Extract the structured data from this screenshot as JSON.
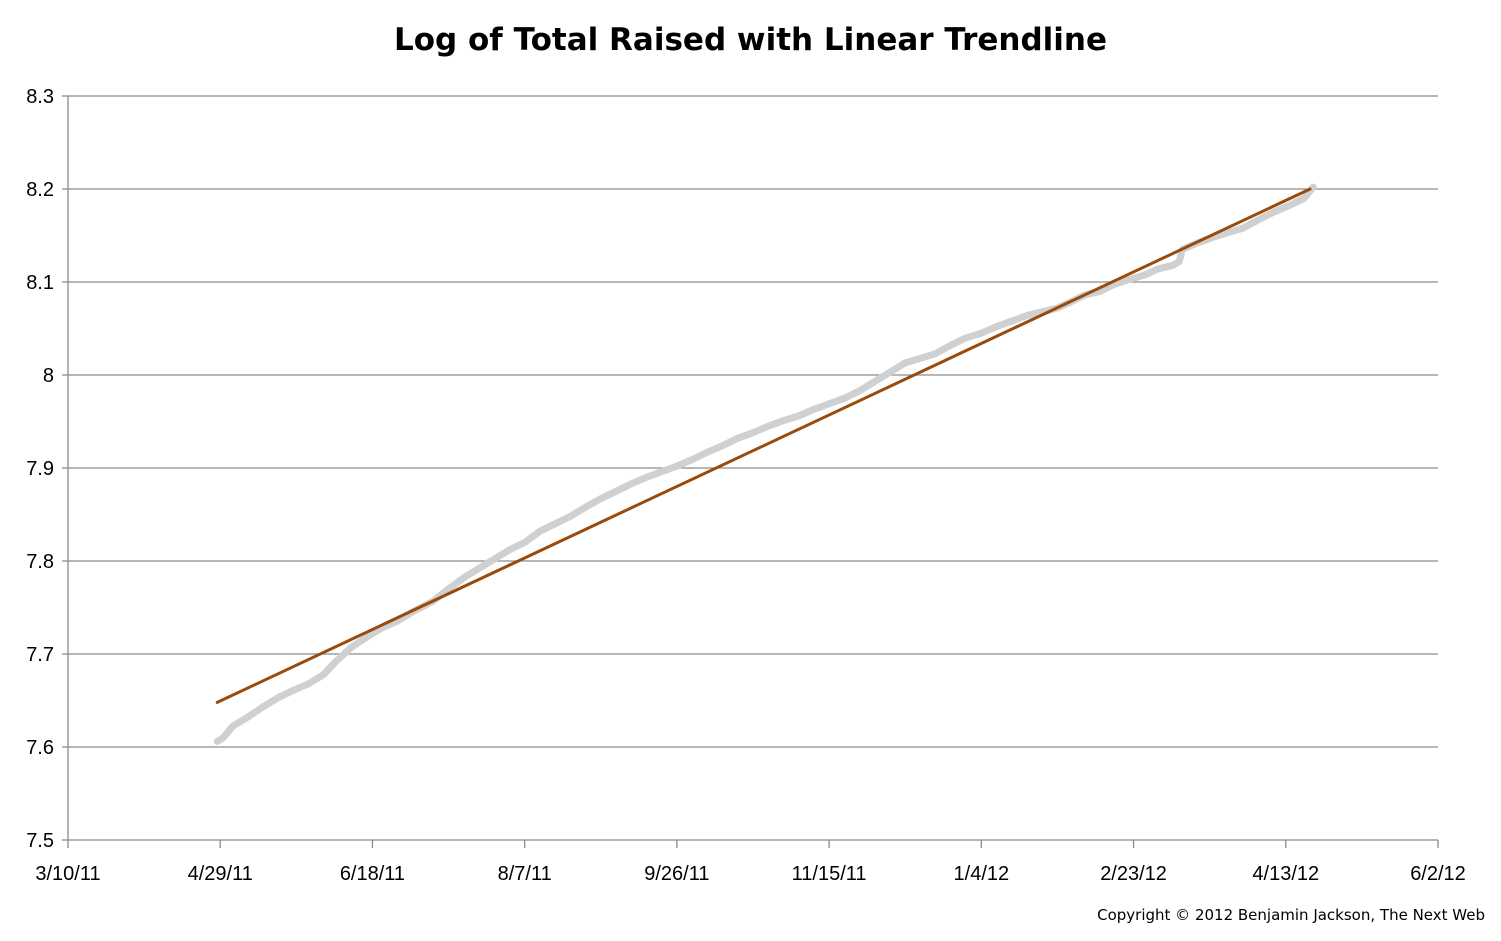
{
  "chart_data": {
    "type": "line",
    "title": "Log of Total Raised with Linear Trendline",
    "xlabel": "",
    "ylabel": "",
    "x_axis": {
      "type": "date",
      "tick_labels": [
        "3/10/11",
        "4/29/11",
        "6/18/11",
        "8/7/11",
        "9/26/11",
        "11/15/11",
        "1/4/12",
        "2/23/12",
        "4/13/12",
        "6/2/12"
      ],
      "tick_dates": [
        "2011-03-10",
        "2011-04-29",
        "2011-06-18",
        "2011-08-07",
        "2011-09-26",
        "2011-11-15",
        "2012-01-04",
        "2012-02-23",
        "2012-04-13",
        "2012-06-02"
      ],
      "range": [
        "2011-03-10",
        "2012-06-02"
      ]
    },
    "y_axis": {
      "tick_labels": [
        "7.5",
        "7.6",
        "7.7",
        "7.8",
        "7.9",
        "8",
        "8.1",
        "8.2",
        "8.3"
      ],
      "ylim": [
        7.5,
        8.3
      ]
    },
    "grid": true,
    "legend": "none",
    "series": [
      {
        "color": "#d0d0d0",
        "points": [
          [
            "2011-04-28",
            7.606
          ],
          [
            "2011-04-30",
            7.61
          ],
          [
            "2011-05-03",
            7.622
          ],
          [
            "2011-05-08",
            7.632
          ],
          [
            "2011-05-13",
            7.643
          ],
          [
            "2011-05-18",
            7.653
          ],
          [
            "2011-05-23",
            7.661
          ],
          [
            "2011-05-28",
            7.668
          ],
          [
            "2011-06-02",
            7.678
          ],
          [
            "2011-06-06",
            7.692
          ],
          [
            "2011-06-11",
            7.707
          ],
          [
            "2011-06-16",
            7.718
          ],
          [
            "2011-06-21",
            7.728
          ],
          [
            "2011-06-26",
            7.735
          ],
          [
            "2011-07-01",
            7.745
          ],
          [
            "2011-07-08",
            7.757
          ],
          [
            "2011-07-13",
            7.77
          ],
          [
            "2011-07-18",
            7.782
          ],
          [
            "2011-07-23",
            7.792
          ],
          [
            "2011-07-28",
            7.802
          ],
          [
            "2011-08-02",
            7.812
          ],
          [
            "2011-08-07",
            7.82
          ],
          [
            "2011-08-12",
            7.832
          ],
          [
            "2011-08-17",
            7.84
          ],
          [
            "2011-08-22",
            7.848
          ],
          [
            "2011-08-27",
            7.858
          ],
          [
            "2011-09-01",
            7.867
          ],
          [
            "2011-09-06",
            7.875
          ],
          [
            "2011-09-11",
            7.883
          ],
          [
            "2011-09-16",
            7.89
          ],
          [
            "2011-09-21",
            7.896
          ],
          [
            "2011-09-26",
            7.902
          ],
          [
            "2011-10-01",
            7.909
          ],
          [
            "2011-10-06",
            7.917
          ],
          [
            "2011-10-11",
            7.924
          ],
          [
            "2011-10-16",
            7.932
          ],
          [
            "2011-10-21",
            7.938
          ],
          [
            "2011-10-26",
            7.945
          ],
          [
            "2011-10-31",
            7.951
          ],
          [
            "2011-11-05",
            7.956
          ],
          [
            "2011-11-10",
            7.963
          ],
          [
            "2011-11-15",
            7.969
          ],
          [
            "2011-11-20",
            7.975
          ],
          [
            "2011-11-25",
            7.983
          ],
          [
            "2011-11-30",
            7.993
          ],
          [
            "2011-12-05",
            8.003
          ],
          [
            "2011-12-10",
            8.013
          ],
          [
            "2011-12-15",
            8.018
          ],
          [
            "2011-12-20",
            8.023
          ],
          [
            "2011-12-25",
            8.032
          ],
          [
            "2011-12-30",
            8.04
          ],
          [
            "2012-01-04",
            8.045
          ],
          [
            "2012-01-09",
            8.052
          ],
          [
            "2012-01-14",
            8.058
          ],
          [
            "2012-01-19",
            8.064
          ],
          [
            "2012-01-24",
            8.068
          ],
          [
            "2012-01-29",
            8.072
          ],
          [
            "2012-02-02",
            8.078
          ],
          [
            "2012-02-07",
            8.086
          ],
          [
            "2012-02-12",
            8.09
          ],
          [
            "2012-02-17",
            8.098
          ],
          [
            "2012-02-22",
            8.103
          ],
          [
            "2012-02-27",
            8.108
          ],
          [
            "2012-03-02",
            8.114
          ],
          [
            "2012-03-07",
            8.118
          ],
          [
            "2012-03-09",
            8.122
          ],
          [
            "2012-03-10",
            8.135
          ],
          [
            "2012-03-15",
            8.142
          ],
          [
            "2012-03-20",
            8.148
          ],
          [
            "2012-03-25",
            8.153
          ],
          [
            "2012-03-30",
            8.158
          ],
          [
            "2012-04-04",
            8.167
          ],
          [
            "2012-04-09",
            8.175
          ],
          [
            "2012-04-14",
            8.182
          ],
          [
            "2012-04-19",
            8.19
          ],
          [
            "2012-04-22",
            8.202
          ]
        ]
      },
      {
        "color": "#9a4a0a",
        "points": [
          [
            "2011-04-28",
            7.648
          ],
          [
            "2012-04-21",
            8.2
          ]
        ]
      }
    ]
  },
  "footer": {
    "copyright": "Copyright © 2012 Benjamin Jackson, The Next Web"
  }
}
